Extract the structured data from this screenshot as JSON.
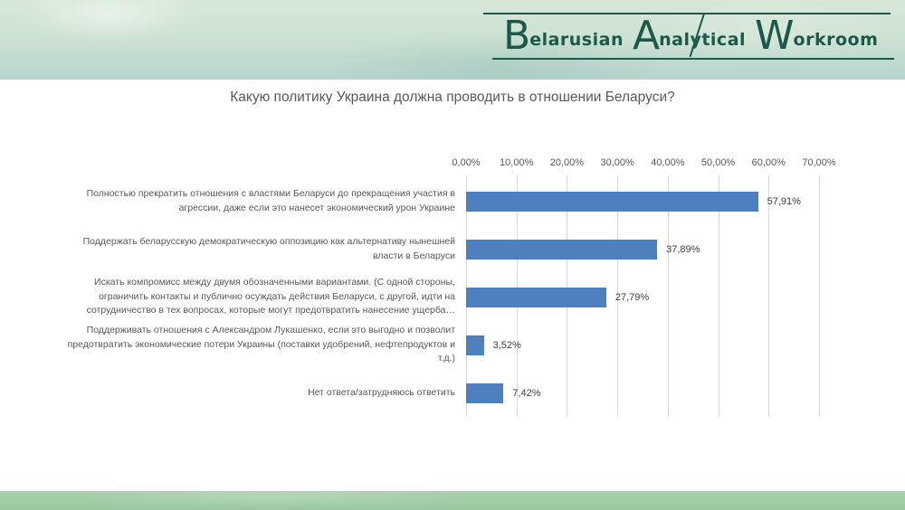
{
  "logo": {
    "color": "#1d584a",
    "words": [
      {
        "initial": "B",
        "rest": "elarusian"
      },
      {
        "initial": "A",
        "rest": "nalytical"
      },
      {
        "initial": "W",
        "rest": "orkroom"
      }
    ]
  },
  "title": "Какую политику Украина должна проводить в отношении Беларуси?",
  "chart_data": {
    "type": "bar",
    "orientation": "horizontal",
    "title": "Какую политику Украина должна проводить в отношении Беларуси?",
    "categories": [
      "Полностью прекратить отношения с властями Беларуси до прекращения участия в агрессии, даже если это нанесет экономический урон Украине",
      "Поддержать беларусскую демократическую оппозицию как альтернативу нынешней власти в Беларуси",
      "Искать компромисс между двумя обозначенными вариантами. (С одной стороны, ограничить контакты и публично осуждать действия Беларуси, с другой, идти на сотрудничество в тех вопросах, которые могут предотвратить нанесение ущерба…",
      "Поддерживать отношения с Александром Лукашенко, если это выгодно и позволит предотвратить экономические потери Украины (поставки удобрений, нефтепродуктов и т.д.)",
      "Нет ответа/затрудняюсь ответить"
    ],
    "values": [
      57.91,
      37.89,
      27.79,
      3.52,
      7.42
    ],
    "value_labels": [
      "57,91%",
      "37,89%",
      "27,79%",
      "3,52%",
      "7,42%"
    ],
    "x_ticks": [
      "0,00%",
      "10,00%",
      "20,00%",
      "30,00%",
      "40,00%",
      "50,00%",
      "60,00%",
      "70,00%"
    ],
    "xlim": [
      0,
      70
    ],
    "grid": "on",
    "legend": "none",
    "bar_color": "#4e7fbf",
    "gridline_color": "#d9d9d9",
    "label_color": "#595959"
  }
}
